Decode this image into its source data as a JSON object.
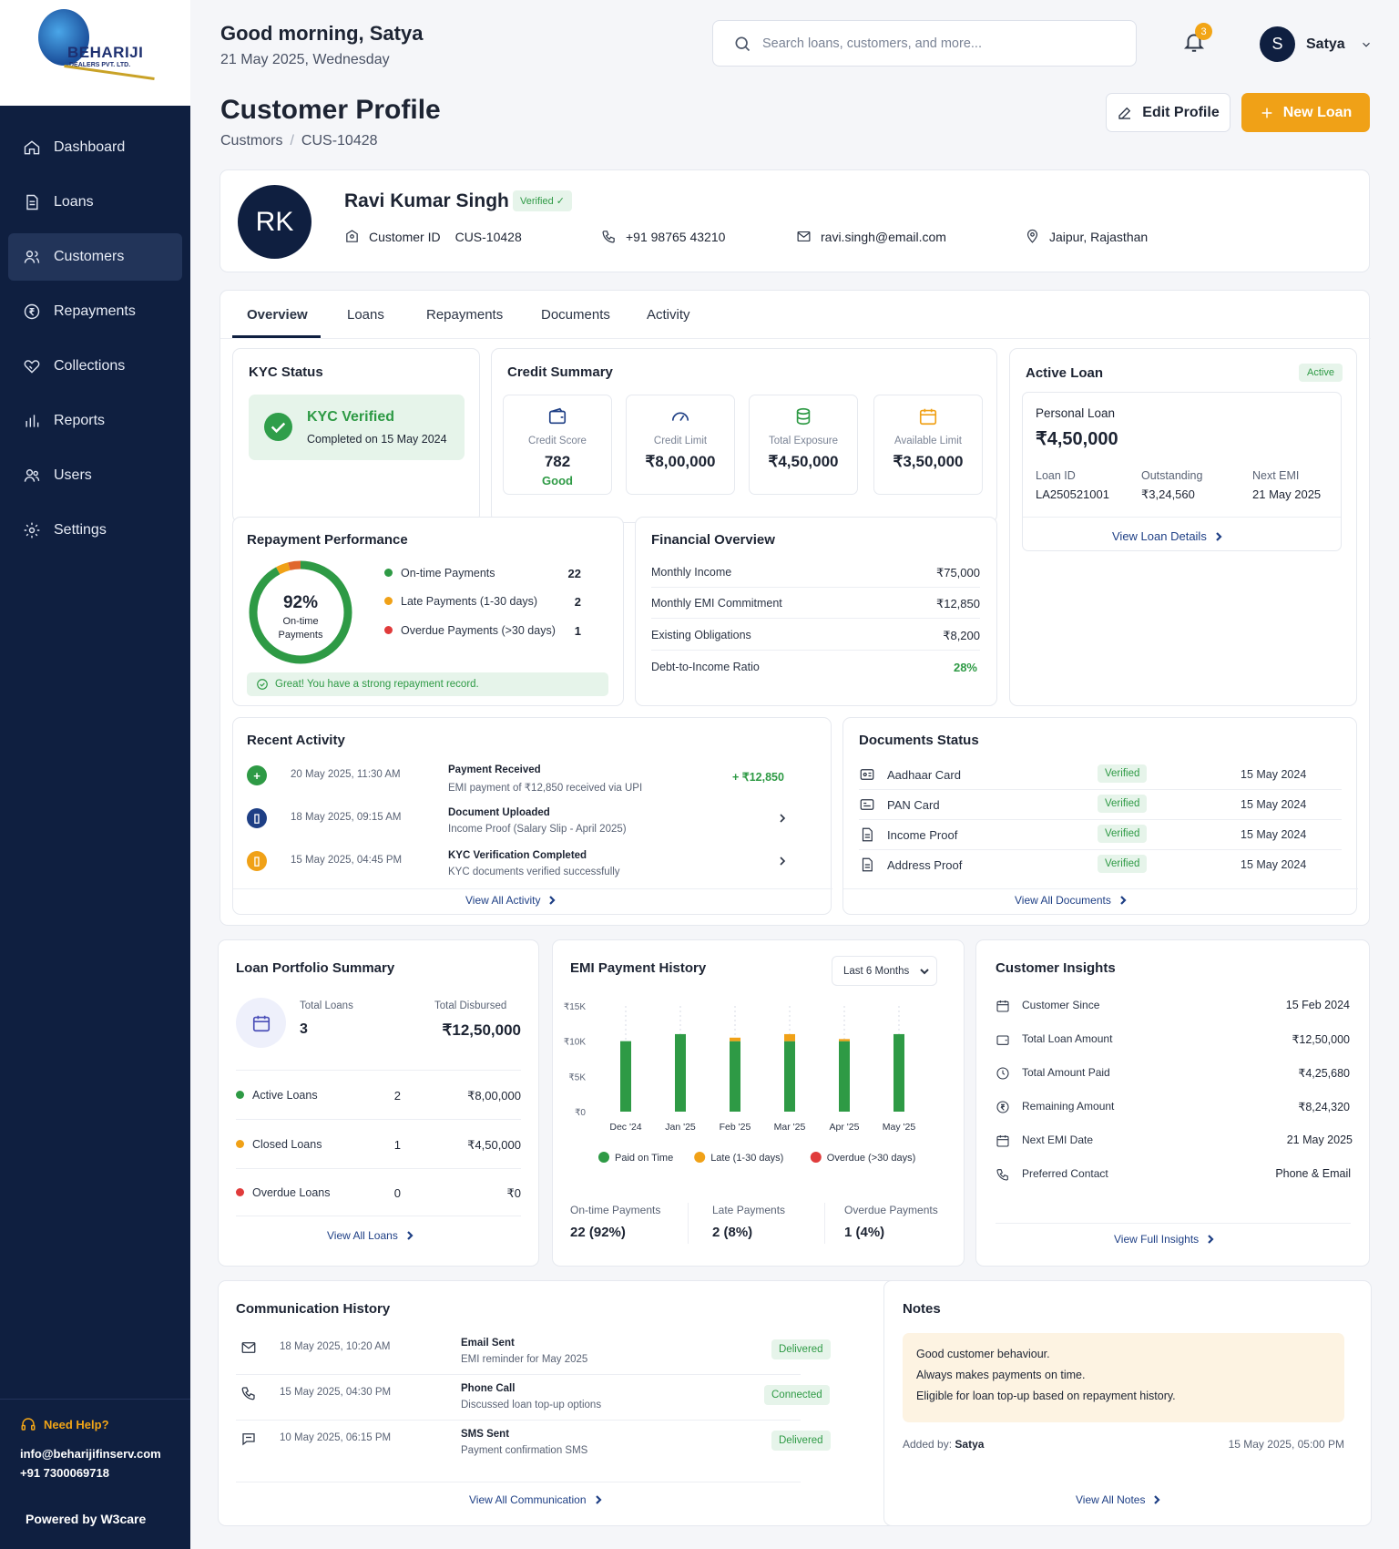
{
  "brand": {
    "name": "BEHARIJI",
    "sub": "DEALERS PVT. LTD."
  },
  "nav": [
    {
      "label": "Dashboard",
      "icon": "home-icon"
    },
    {
      "label": "Loans",
      "icon": "document-icon"
    },
    {
      "label": "Customers",
      "icon": "users-icon",
      "active": true
    },
    {
      "label": "Repayments",
      "icon": "rupee-circle-icon"
    },
    {
      "label": "Collections",
      "icon": "handshake-icon"
    },
    {
      "label": "Reports",
      "icon": "bar-chart-icon"
    },
    {
      "label": "Users",
      "icon": "user-group-icon"
    },
    {
      "label": "Settings",
      "icon": "gear-icon"
    }
  ],
  "sidebar_footer": {
    "help": "Need Help?",
    "email": "info@beharijifinserv.com",
    "phone": "+91 7300069718",
    "powered": "Powered by W3care"
  },
  "header": {
    "greeting": "Good morning, Satya",
    "date": "21 May 2025, Wednesday",
    "search_placeholder": "Search loans, customers, and more...",
    "notif_count": "3",
    "user_initial": "S",
    "user_name": "Satya"
  },
  "page": {
    "title": "Customer Profile",
    "crumb_root": "Custmors",
    "crumb_sep": "/",
    "crumb_leaf": "CUS-10428",
    "edit_label": "Edit Profile",
    "new_loan_label": "New Loan"
  },
  "customer": {
    "initials": "RK",
    "name": "Ravi Kumar Singh",
    "verified": "Verified ✓",
    "id_label": "Customer ID",
    "id": "CUS-10428",
    "phone": "+91 98765 43210",
    "email": "ravi.singh@email.com",
    "location": "Jaipur, Rajasthan"
  },
  "tabs": [
    "Overview",
    "Loans",
    "Repayments",
    "Documents",
    "Activity"
  ],
  "kyc": {
    "title": "KYC Status",
    "status": "KYC Verified",
    "completed": "Completed on 15 May 2024"
  },
  "credit": {
    "title": "Credit Summary",
    "items": [
      {
        "label": "Credit Score",
        "value": "782",
        "sub": "Good",
        "icon": "wallet-icon",
        "color": "#1e3f85"
      },
      {
        "label": "Credit Limit",
        "value": "₹8,00,000",
        "icon": "gauge-icon",
        "color": "#1e3f85"
      },
      {
        "label": "Total Exposure",
        "value": "₹4,50,000",
        "icon": "coins-icon",
        "color": "#2e9a45"
      },
      {
        "label": "Available Limit",
        "value": "₹3,50,000",
        "icon": "calendar-icon",
        "color": "#f0a117"
      }
    ]
  },
  "active_loan": {
    "title": "Active Loan",
    "tag": "Active",
    "type": "Personal Loan",
    "amount": "₹4,50,000",
    "loan_id_label": "Loan ID",
    "loan_id": "LA250521001",
    "outstanding_label": "Outstanding",
    "outstanding": "₹3,24,560",
    "next_emi_label": "Next EMI",
    "next_emi": "21 May 2025",
    "link": "View Loan Details"
  },
  "repayment": {
    "title": "Repayment Performance",
    "percent": "92%",
    "center_label1": "On-time",
    "center_label2": "Payments",
    "legend": [
      {
        "label": "On-time Payments",
        "value": "22",
        "color": "#2e9a45"
      },
      {
        "label": "Late Payments (1-30 days)",
        "value": "2",
        "color": "#f0a117"
      },
      {
        "label": "Overdue Payments (>30 days)",
        "value": "1",
        "color": "#e03b3b"
      }
    ],
    "note": "Great! You have a strong repayment record."
  },
  "financial": {
    "title": "Financial Overview",
    "rows": [
      {
        "label": "Monthly Income",
        "value": "₹75,000"
      },
      {
        "label": "Monthly EMI Commitment",
        "value": "₹12,850"
      },
      {
        "label": "Existing Obligations",
        "value": "₹8,200"
      },
      {
        "label": "Debt-to-Income Ratio",
        "value": "28%"
      }
    ]
  },
  "activity": {
    "title": "Recent Activity",
    "items": [
      {
        "time": "20 May 2025, 11:30 AM",
        "title": "Payment Received",
        "desc": "EMI payment of ₹12,850 received via UPI",
        "amount": "+ ₹12,850",
        "color": "#2e9a45",
        "glyph": "+"
      },
      {
        "time": "18 May 2025, 09:15 AM",
        "title": "Document Uploaded",
        "desc": "Income Proof (Salary Slip - April 2025)",
        "color": "#1e3f85",
        "glyph": "▯"
      },
      {
        "time": "15 May 2025, 04:45 PM",
        "title": "KYC Verification Completed",
        "desc": "KYC documents verified successfully",
        "color": "#f0a117",
        "glyph": "▯"
      }
    ],
    "link": "View All Activity"
  },
  "documents": {
    "title": "Documents Status",
    "items": [
      {
        "name": "Aadhaar Card",
        "status": "Verified",
        "date": "15 May 2024"
      },
      {
        "name": "PAN Card",
        "status": "Verified",
        "date": "15 May 2024"
      },
      {
        "name": "Income Proof",
        "status": "Verified",
        "date": "15 May 2024"
      },
      {
        "name": "Address Proof",
        "status": "Verified",
        "date": "15 May 2024"
      }
    ],
    "link": "View All Documents"
  },
  "portfolio": {
    "title": "Loan Portfolio Summary",
    "total_loans_label": "Total Loans",
    "total_loans": "3",
    "total_disbursed_label": "Total Disbursed",
    "total_disbursed": "₹12,50,000",
    "rows": [
      {
        "label": "Active Loans",
        "count": "2",
        "amount": "₹8,00,000",
        "color": "#2e9a45"
      },
      {
        "label": "Closed Loans",
        "count": "1",
        "amount": "₹4,50,000",
        "color": "#f0a117"
      },
      {
        "label": "Overdue Loans",
        "count": "0",
        "amount": "₹0",
        "color": "#e03b3b"
      }
    ],
    "link": "View All Loans"
  },
  "emi": {
    "title": "EMI Payment History",
    "filter": "Last 6 Months",
    "stats": [
      {
        "label": "On-time Payments",
        "value": "22 (92%)"
      },
      {
        "label": "Late Payments",
        "value": "2 (8%)"
      },
      {
        "label": "Overdue Payments",
        "value": "1 (4%)"
      }
    ]
  },
  "chart_data": {
    "type": "bar",
    "categories": [
      "Dec '24",
      "Jan '25",
      "Feb '25",
      "Mar '25",
      "Apr '25",
      "May '25"
    ],
    "series": [
      {
        "name": "Paid on Time",
        "color": "#2e9a45",
        "values": [
          10000,
          11000,
          10000,
          10000,
          10000,
          11000
        ]
      },
      {
        "name": "Late (1-30 days)",
        "color": "#f0a117",
        "values": [
          0,
          0,
          500,
          1000,
          300,
          0
        ]
      },
      {
        "name": "Overdue (>30 days)",
        "color": "#e03b3b",
        "values": [
          0,
          0,
          0,
          0,
          0,
          0
        ]
      }
    ],
    "yticks": [
      "₹15K",
      "₹10K",
      "₹5K",
      "₹0"
    ],
    "ylim": [
      0,
      15000
    ]
  },
  "insights": {
    "title": "Customer Insights",
    "rows": [
      {
        "label": "Customer Since",
        "value": "15 Feb 2024",
        "icon": "calendar-icon"
      },
      {
        "label": "Total Loan Amount",
        "value": "₹12,50,000",
        "icon": "wallet-icon"
      },
      {
        "label": "Total Amount Paid",
        "value": "₹4,25,680",
        "icon": "clock-icon"
      },
      {
        "label": "Remaining Amount",
        "value": "₹8,24,320",
        "icon": "rupee-circle-icon"
      },
      {
        "label": "Next EMI Date",
        "value": "21 May 2025",
        "icon": "calendar-icon"
      },
      {
        "label": "Preferred Contact",
        "value": "Phone & Email",
        "icon": "phone-icon"
      }
    ],
    "link": "View Full Insights"
  },
  "communication": {
    "title": "Communication History",
    "items": [
      {
        "time": "18 May 2025, 10:20 AM",
        "title": "Email Sent",
        "desc": "EMI reminder for May 2025",
        "status": "Delivered",
        "icon": "mail-icon"
      },
      {
        "time": "15 May 2025, 04:30 PM",
        "title": "Phone Call",
        "desc": "Discussed loan top-up options",
        "status": "Connected",
        "icon": "phone-icon"
      },
      {
        "time": "10 May 2025, 06:15 PM",
        "title": "SMS Sent",
        "desc": "Payment confirmation SMS",
        "status": "Delivered",
        "icon": "chat-icon"
      }
    ],
    "link": "View All Communication"
  },
  "notes": {
    "title": "Notes",
    "lines": [
      "Good customer behaviour.",
      "Always makes payments on time.",
      "Eligible for loan top-up based on repayment history."
    ],
    "added_by_label": "Added by:",
    "added_by": "Satya",
    "added_at": "15 May 2025, 05:00 PM",
    "link": "View All Notes"
  }
}
